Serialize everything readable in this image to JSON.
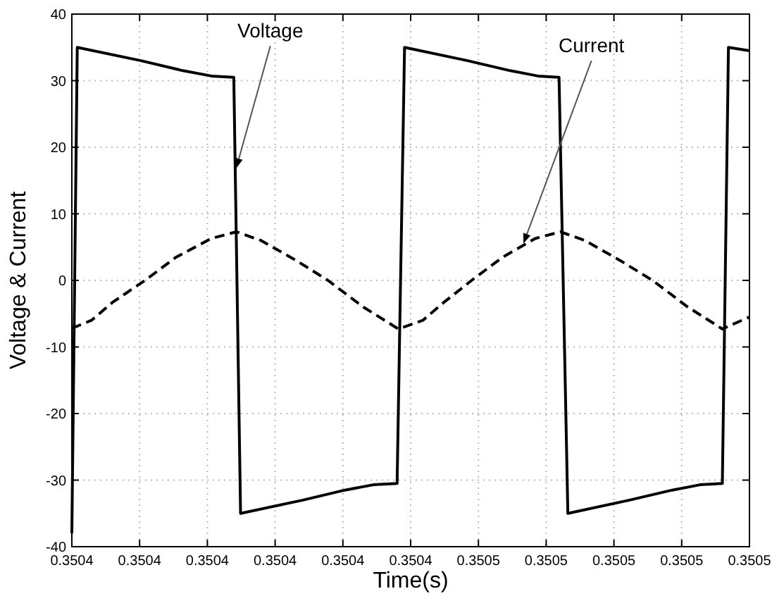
{
  "chart_data": {
    "type": "line",
    "xlabel": "Time(s)",
    "ylabel": "Voltage & Current",
    "xlim": [
      0.3504,
      0.3505
    ],
    "xticks": [
      {
        "value": 0.3504,
        "label": "0.3504"
      },
      {
        "value": 0.35041,
        "label": "0.3504"
      },
      {
        "value": 0.35042,
        "label": "0.3504"
      },
      {
        "value": 0.35043,
        "label": "0.3504"
      },
      {
        "value": 0.35044,
        "label": "0.3504"
      },
      {
        "value": 0.35045,
        "label": "0.3504"
      },
      {
        "value": 0.35046,
        "label": "0.3505"
      },
      {
        "value": 0.35047,
        "label": "0.3505"
      },
      {
        "value": 0.35048,
        "label": "0.3505"
      },
      {
        "value": 0.35049,
        "label": "0.3505"
      },
      {
        "value": 0.3505,
        "label": "0.3505"
      }
    ],
    "ylim": [
      -40,
      40
    ],
    "yticks": [
      -40,
      -30,
      -20,
      -10,
      0,
      10,
      20,
      30,
      40
    ],
    "grid": true,
    "series": [
      {
        "color": "#000000",
        "line_style": "solid",
        "x": [
          0.3504,
          0.3504008,
          0.3504102,
          0.3504164,
          0.3504206,
          0.3504239,
          0.3504249,
          0.3504341,
          0.3504403,
          0.3504445,
          0.350448,
          0.3504491,
          0.3504584,
          0.3504647,
          0.3504688,
          0.3504719,
          0.3504732,
          0.3504823,
          0.3504886,
          0.3504927,
          0.350496,
          0.3504969,
          0.3505
        ],
        "values": [
          -38,
          35,
          33,
          31.5,
          30.7,
          30.5,
          -35,
          -33,
          -31.5,
          -30.7,
          -30.5,
          35,
          33,
          31.5,
          30.7,
          30.5,
          -35,
          -33,
          -31.5,
          -30.7,
          -30.5,
          35,
          34.5
        ]
      },
      {
        "color": "#000000",
        "line_style": "dashed",
        "x": [
          0.3504,
          0.3504029,
          0.350406,
          0.3504108,
          0.3504154,
          0.3504206,
          0.3504243,
          0.3504279,
          0.3504331,
          0.3504378,
          0.350443,
          0.3504482,
          0.3504518,
          0.3504549,
          0.350459,
          0.3504636,
          0.3504684,
          0.3504721,
          0.3504757,
          0.3504809,
          0.3504857,
          0.3504909,
          0.350496,
          0.3505
        ],
        "values": [
          -7.2,
          -6,
          -3.3,
          0,
          3.5,
          6.3,
          7.3,
          6,
          3,
          0,
          -4,
          -7.3,
          -6,
          -3.3,
          0,
          3.5,
          6.3,
          7.3,
          6,
          3,
          0,
          -4,
          -7.3,
          -5.5
        ]
      }
    ],
    "annotations": [
      {
        "text": "Voltage",
        "x": 0.3504243,
        "y": 17
      },
      {
        "text": "Current",
        "x": 0.3504667,
        "y": 5.7
      }
    ]
  }
}
